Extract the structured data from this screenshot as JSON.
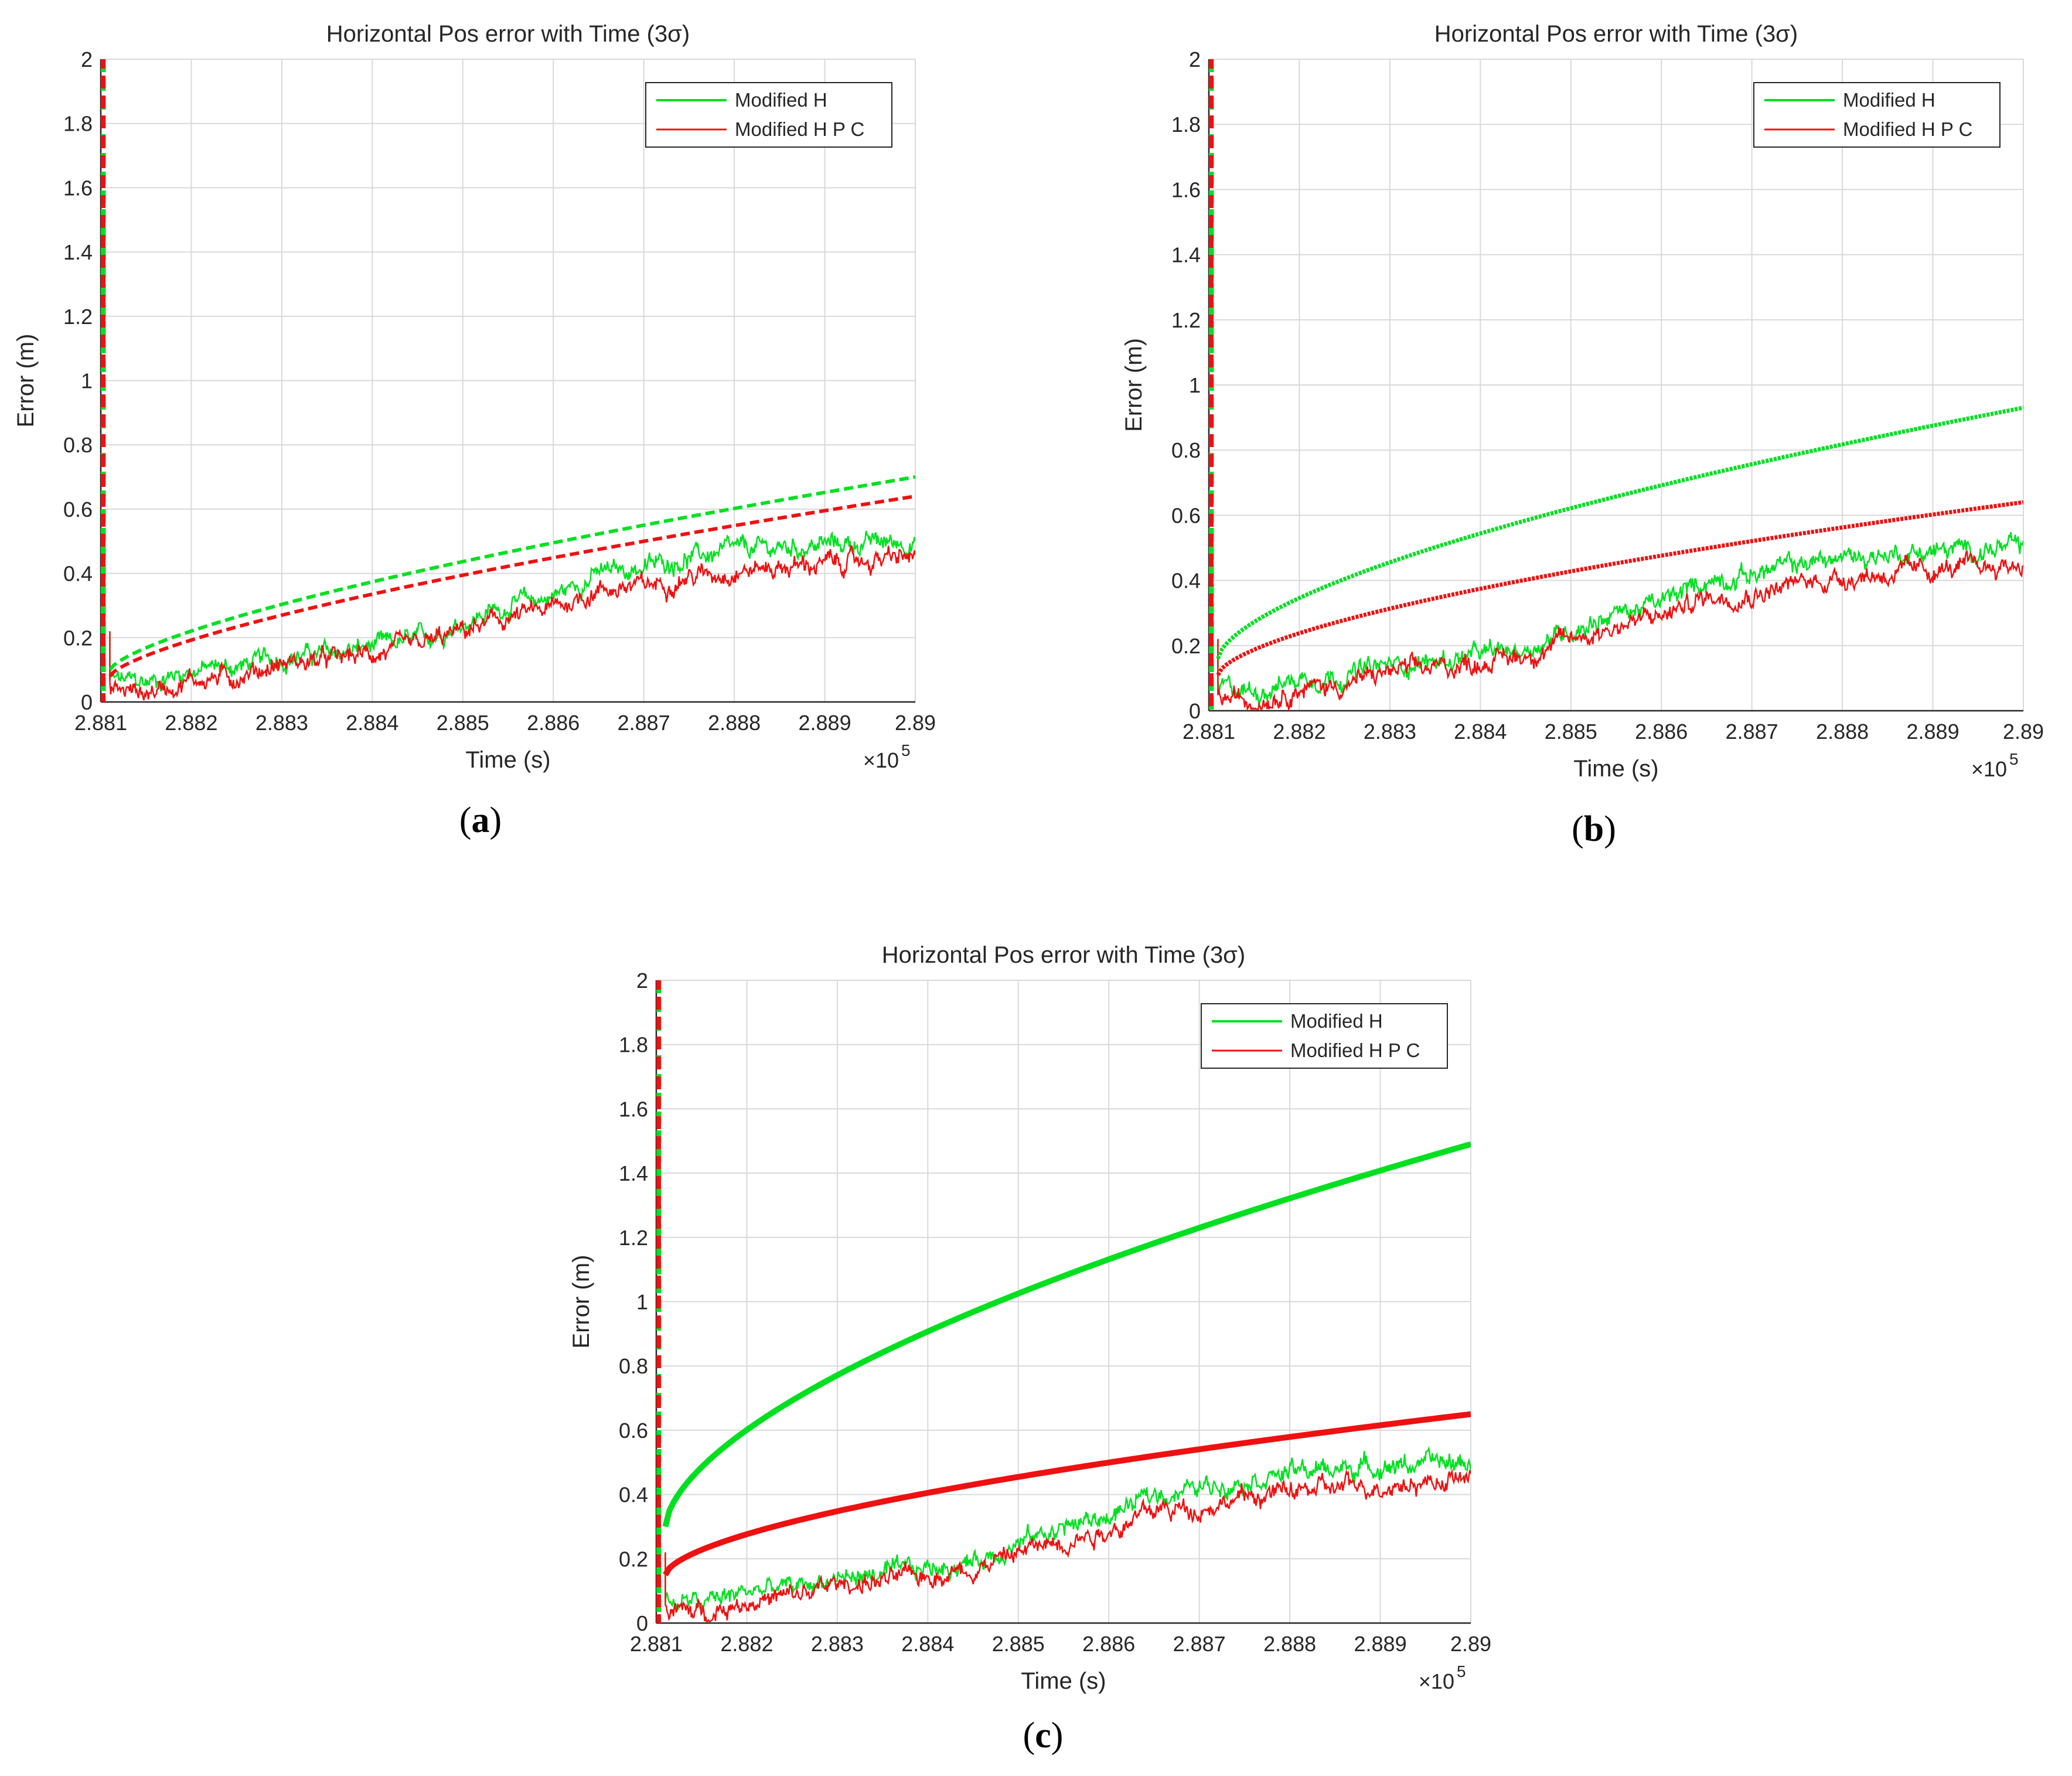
{
  "figure": {
    "caption_labels": [
      "a",
      "b",
      "c"
    ]
  },
  "colors": {
    "modified_h": "#00e020",
    "modified_hpc": "#ee1111",
    "grid": "#d9d9d9",
    "axis": "#262626"
  },
  "chart_data": [
    {
      "type": "line",
      "panel": "a",
      "title": "Horizontal Pos error with Time (3σ)",
      "xlabel": "Time (s)",
      "ylabel": "Error (m)",
      "x_exponent_label": "×10",
      "x_exponent_power": "5",
      "xlim": [
        2.881,
        2.89
      ],
      "ylim": [
        0,
        2
      ],
      "x_ticks": [
        "2.881",
        "2.882",
        "2.883",
        "2.884",
        "2.885",
        "2.886",
        "2.887",
        "2.888",
        "2.889",
        "2.89"
      ],
      "y_ticks": [
        "0",
        "0.2",
        "0.4",
        "0.6",
        "0.8",
        "1",
        "1.2",
        "1.4",
        "1.6",
        "1.8",
        "2"
      ],
      "grid": true,
      "legend": {
        "position": "top-right",
        "entries": [
          "Modified H",
          "Modified H P C"
        ]
      },
      "series": [
        {
          "name": "Modified H",
          "style": "solid",
          "role": "error",
          "x": [
            2.8811,
            2.8815,
            2.882,
            2.8825,
            2.883,
            2.8835,
            2.884,
            2.8845,
            2.885,
            2.8855,
            2.886,
            2.8865,
            2.887,
            2.8875,
            2.888,
            2.8885,
            2.889,
            2.89
          ],
          "values": [
            0.07,
            0.06,
            0.1,
            0.11,
            0.14,
            0.15,
            0.17,
            0.19,
            0.25,
            0.3,
            0.33,
            0.4,
            0.42,
            0.45,
            0.47,
            0.48,
            0.49,
            0.5
          ]
        },
        {
          "name": "Modified H P C",
          "style": "solid",
          "role": "error",
          "x": [
            2.8811,
            2.8815,
            2.882,
            2.8825,
            2.883,
            2.8835,
            2.884,
            2.8845,
            2.885,
            2.8855,
            2.886,
            2.8865,
            2.887,
            2.8875,
            2.888,
            2.8885,
            2.889,
            2.89
          ],
          "values": [
            0.04,
            0.03,
            0.07,
            0.08,
            0.12,
            0.13,
            0.15,
            0.17,
            0.22,
            0.26,
            0.29,
            0.35,
            0.36,
            0.39,
            0.41,
            0.42,
            0.43,
            0.45
          ]
        },
        {
          "name": "Modified H",
          "style": "dashed",
          "role": "3-sigma bound",
          "x0": 2.8811,
          "y0": 0.1,
          "x_end": 2.89,
          "y_end": 0.7,
          "exponent": 0.7
        },
        {
          "name": "Modified H P C",
          "style": "dashed",
          "role": "3-sigma bound",
          "x0": 2.8811,
          "y0": 0.08,
          "x_end": 2.89,
          "y_end": 0.64,
          "exponent": 0.7
        }
      ]
    },
    {
      "type": "line",
      "panel": "b",
      "title": "Horizontal Pos error with Time (3σ)",
      "xlabel": "Time (s)",
      "ylabel": "Error (m)",
      "x_exponent_label": "×10",
      "x_exponent_power": "5",
      "xlim": [
        2.881,
        2.89
      ],
      "ylim": [
        0,
        2
      ],
      "x_ticks": [
        "2.881",
        "2.882",
        "2.883",
        "2.884",
        "2.885",
        "2.886",
        "2.887",
        "2.888",
        "2.889",
        "2.89"
      ],
      "y_ticks": [
        "0",
        "0.2",
        "0.4",
        "0.6",
        "0.8",
        "1",
        "1.2",
        "1.4",
        "1.6",
        "1.8",
        "2"
      ],
      "grid": true,
      "legend": {
        "position": "top-right",
        "entries": [
          "Modified H",
          "Modified H P C"
        ]
      },
      "series": [
        {
          "name": "Modified H",
          "style": "solid",
          "role": "error",
          "x": [
            2.8811,
            2.8815,
            2.882,
            2.8825,
            2.883,
            2.8835,
            2.884,
            2.8845,
            2.885,
            2.8855,
            2.886,
            2.8865,
            2.887,
            2.8875,
            2.888,
            2.8885,
            2.889,
            2.89
          ],
          "values": [
            0.07,
            0.06,
            0.1,
            0.11,
            0.14,
            0.15,
            0.17,
            0.19,
            0.25,
            0.3,
            0.33,
            0.4,
            0.42,
            0.45,
            0.47,
            0.48,
            0.49,
            0.5
          ]
        },
        {
          "name": "Modified H P C",
          "style": "solid",
          "role": "error",
          "x": [
            2.8811,
            2.8815,
            2.882,
            2.8825,
            2.883,
            2.8835,
            2.884,
            2.8845,
            2.885,
            2.8855,
            2.886,
            2.8865,
            2.887,
            2.8875,
            2.888,
            2.8885,
            2.889,
            2.89
          ],
          "values": [
            0.04,
            0.03,
            0.07,
            0.08,
            0.12,
            0.13,
            0.15,
            0.17,
            0.22,
            0.26,
            0.29,
            0.35,
            0.36,
            0.39,
            0.41,
            0.42,
            0.43,
            0.45
          ]
        },
        {
          "name": "Modified H",
          "style": "dotted-dense",
          "role": "3-sigma bound",
          "x0": 2.8811,
          "y0": 0.16,
          "x_end": 2.89,
          "y_end": 0.93,
          "exponent": 0.62
        },
        {
          "name": "Modified H P C",
          "style": "dotted-dense",
          "role": "3-sigma bound",
          "x0": 2.8811,
          "y0": 0.11,
          "x_end": 2.89,
          "y_end": 0.64,
          "exponent": 0.62
        }
      ]
    },
    {
      "type": "line",
      "panel": "c",
      "title": "Horizontal Pos error with Time (3σ)",
      "xlabel": "Time (s)",
      "ylabel": "Error (m)",
      "x_exponent_label": "×10",
      "x_exponent_power": "5",
      "xlim": [
        2.881,
        2.89
      ],
      "ylim": [
        0,
        2
      ],
      "x_ticks": [
        "2.881",
        "2.882",
        "2.883",
        "2.884",
        "2.885",
        "2.886",
        "2.887",
        "2.888",
        "2.889",
        "2.89"
      ],
      "y_ticks": [
        "0",
        "0.2",
        "0.4",
        "0.6",
        "0.8",
        "1",
        "1.2",
        "1.4",
        "1.6",
        "1.8",
        "2"
      ],
      "grid": true,
      "legend": {
        "position": "top-right",
        "entries": [
          "Modified H",
          "Modified H P C"
        ]
      },
      "series": [
        {
          "name": "Modified H",
          "style": "solid",
          "role": "error",
          "x": [
            2.8811,
            2.8815,
            2.882,
            2.8825,
            2.883,
            2.8835,
            2.884,
            2.8845,
            2.885,
            2.8855,
            2.886,
            2.8865,
            2.887,
            2.8875,
            2.888,
            2.8885,
            2.889,
            2.89
          ],
          "values": [
            0.07,
            0.06,
            0.1,
            0.11,
            0.14,
            0.15,
            0.17,
            0.19,
            0.25,
            0.3,
            0.33,
            0.4,
            0.42,
            0.45,
            0.47,
            0.48,
            0.49,
            0.5
          ]
        },
        {
          "name": "Modified H P C",
          "style": "solid",
          "role": "error",
          "x": [
            2.8811,
            2.8815,
            2.882,
            2.8825,
            2.883,
            2.8835,
            2.884,
            2.8845,
            2.885,
            2.8855,
            2.886,
            2.8865,
            2.887,
            2.8875,
            2.888,
            2.8885,
            2.889,
            2.89
          ],
          "values": [
            0.04,
            0.03,
            0.07,
            0.08,
            0.12,
            0.13,
            0.15,
            0.17,
            0.22,
            0.26,
            0.29,
            0.35,
            0.36,
            0.39,
            0.41,
            0.42,
            0.43,
            0.45
          ]
        },
        {
          "name": "Modified H",
          "style": "thick",
          "role": "3-sigma bound",
          "x0": 2.8811,
          "y0": 0.3,
          "x_end": 2.89,
          "y_end": 1.49,
          "exponent": 0.6
        },
        {
          "name": "Modified H P C",
          "style": "thick",
          "role": "3-sigma bound",
          "x0": 2.8811,
          "y0": 0.15,
          "x_end": 2.89,
          "y_end": 0.65,
          "exponent": 0.6
        }
      ]
    }
  ]
}
